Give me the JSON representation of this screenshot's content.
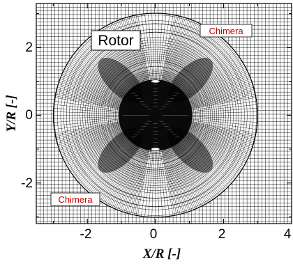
{
  "chart_data": {
    "type": "mesh",
    "title": "",
    "xlabel": "X/R [-]",
    "ylabel": "Y/R [-]",
    "xlim": [
      -3.5,
      4
    ],
    "ylim": [
      -3.2,
      3.3
    ],
    "xticks": [
      "-2",
      "0",
      "2",
      "4"
    ],
    "yticks": [
      "2",
      "0",
      "-2"
    ],
    "grid": "background cartesian mesh",
    "chimera_radius": 3.0,
    "rotor_disk_radius": 1.0,
    "blade_marks_y": [
      1.0,
      -1.0
    ],
    "annotations": {
      "rotor": "Rotor",
      "chimera_top": "Chimera",
      "chimera_bottom": "Chimera"
    },
    "colors": {
      "mesh": "#000000",
      "chimera_text": "#c00000"
    }
  }
}
